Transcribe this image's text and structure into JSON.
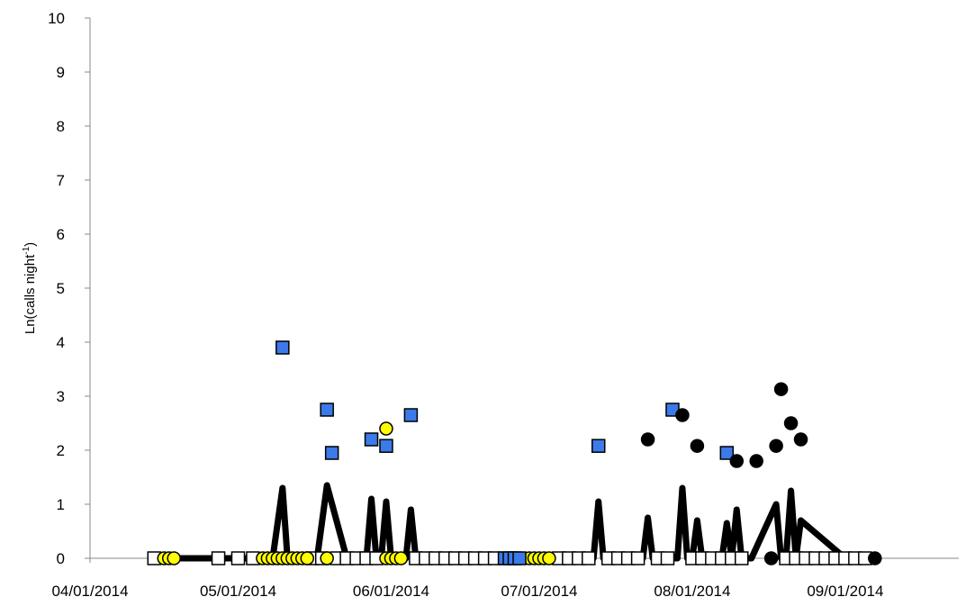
{
  "chart_data": {
    "type": "scatter",
    "ylabel_parts": [
      "Ln(calls night",
      "-1",
      ")"
    ],
    "ylim": [
      0,
      10
    ],
    "yticks": [
      0,
      1,
      2,
      3,
      4,
      5,
      6,
      7,
      8,
      9,
      10
    ],
    "xlim": [
      "04/01/2014",
      "09/24/2014"
    ],
    "xticks": [
      "04/01/2014",
      "05/01/2014",
      "06/01/2014",
      "07/01/2014",
      "08/01/2014",
      "09/01/2014"
    ],
    "grid": false,
    "line": {
      "color": "#000000",
      "x": [
        "04/14/2014",
        "05/08/2014",
        "05/10/2014",
        "05/11/2014",
        "05/17/2014",
        "05/19/2014",
        "05/23/2014",
        "05/27/2014",
        "05/28/2014",
        "05/29/2014",
        "05/30/2014",
        "05/31/2014",
        "06/01/2014",
        "06/04/2014",
        "06/05/2014",
        "06/06/2014",
        "07/12/2014",
        "07/13/2014",
        "07/14/2014",
        "07/22/2014",
        "07/23/2014",
        "07/24/2014",
        "07/29/2014",
        "07/30/2014",
        "07/31/2014",
        "08/01/2014",
        "08/02/2014",
        "08/03/2014",
        "08/07/2014",
        "08/08/2014",
        "08/09/2014",
        "08/10/2014",
        "08/11/2014",
        "08/13/2014",
        "08/18/2014",
        "08/19/2014",
        "08/20/2014",
        "08/21/2014",
        "08/22/2014",
        "08/23/2014",
        "09/01/2014",
        "09/07/2014"
      ],
      "values": [
        0,
        0,
        1.3,
        0,
        0,
        1.35,
        0,
        0,
        1.1,
        0,
        0,
        1.05,
        0,
        0,
        0.9,
        0,
        0,
        1.05,
        0,
        0,
        0.75,
        0,
        0,
        1.3,
        0,
        0,
        0.7,
        0,
        0,
        0.65,
        0,
        0.9,
        0,
        0,
        1.0,
        0,
        0,
        1.25,
        0,
        0.7,
        0,
        0
      ]
    },
    "series": [
      {
        "marker": "square",
        "color": "#ffffff",
        "x": [
          "04/14/2014",
          "04/27/2014",
          "05/01/2014",
          "05/04/2014",
          "05/16/2014",
          "05/18/2014",
          "05/21/2014",
          "05/23/2014",
          "05/25/2014",
          "05/27/2014",
          "05/29/2014",
          "06/06/2014",
          "06/08/2014",
          "06/10/2014",
          "06/12/2014",
          "06/14/2014",
          "06/16/2014",
          "06/18/2014",
          "06/20/2014",
          "06/22/2014",
          "07/05/2014",
          "07/07/2014",
          "07/09/2014",
          "07/11/2014",
          "07/15/2014",
          "07/17/2014",
          "07/19/2014",
          "07/21/2014",
          "07/25/2014",
          "07/27/2014",
          "08/01/2014",
          "08/03/2014",
          "08/05/2014",
          "08/07/2014",
          "08/09/2014",
          "08/11/2014",
          "08/20/2014",
          "08/22/2014",
          "08/24/2014",
          "08/26/2014",
          "08/28/2014",
          "08/30/2014",
          "09/01/2014",
          "09/03/2014",
          "09/05/2014"
        ],
        "values": [
          0,
          0,
          0,
          0,
          0,
          0,
          0,
          0,
          0,
          0,
          0,
          0,
          0,
          0,
          0,
          0,
          0,
          0,
          0,
          0,
          0,
          0,
          0,
          0,
          0,
          0,
          0,
          0,
          0,
          0,
          0,
          0,
          0,
          0,
          0,
          0,
          0,
          0,
          0,
          0,
          0,
          0,
          0,
          0,
          0
        ]
      },
      {
        "marker": "circle",
        "color": "#ffff00",
        "x": [
          "04/16/2014",
          "04/17/2014",
          "04/18/2014",
          "05/06/2014",
          "05/07/2014",
          "05/08/2014",
          "05/09/2014",
          "05/10/2014",
          "05/11/2014",
          "05/12/2014",
          "05/13/2014",
          "05/14/2014",
          "05/15/2014",
          "05/19/2014",
          "05/31/2014",
          "06/01/2014",
          "06/02/2014",
          "06/03/2014",
          "06/29/2014",
          "06/30/2014",
          "07/01/2014",
          "07/02/2014",
          "07/03/2014",
          "05/31/2014"
        ],
        "values": [
          0,
          0,
          0,
          0,
          0,
          0,
          0,
          0,
          0,
          0,
          0,
          0,
          0,
          0,
          0,
          0,
          0,
          0,
          0,
          0,
          0,
          0,
          0,
          2.4
        ]
      },
      {
        "marker": "square",
        "color": "#3b7ae8",
        "x": [
          "06/24/2014",
          "06/25/2014",
          "06/26/2014",
          "06/27/2014",
          "05/10/2014",
          "05/19/2014",
          "05/20/2014",
          "05/28/2014",
          "05/31/2014",
          "06/05/2014",
          "07/13/2014",
          "07/28/2014",
          "08/08/2014"
        ],
        "values": [
          0,
          0,
          0,
          0,
          3.9,
          2.75,
          1.95,
          2.2,
          2.08,
          2.65,
          2.08,
          2.75,
          1.95
        ]
      },
      {
        "marker": "circle",
        "color": "#000000",
        "x": [
          "07/23/2014",
          "07/30/2014",
          "08/02/2014",
          "08/10/2014",
          "08/14/2014",
          "08/18/2014",
          "08/19/2014",
          "08/21/2014",
          "08/23/2014",
          "08/17/2014",
          "09/07/2014"
        ],
        "values": [
          2.2,
          2.65,
          2.08,
          1.8,
          1.8,
          2.08,
          3.13,
          2.5,
          2.2,
          0,
          0
        ]
      }
    ]
  }
}
